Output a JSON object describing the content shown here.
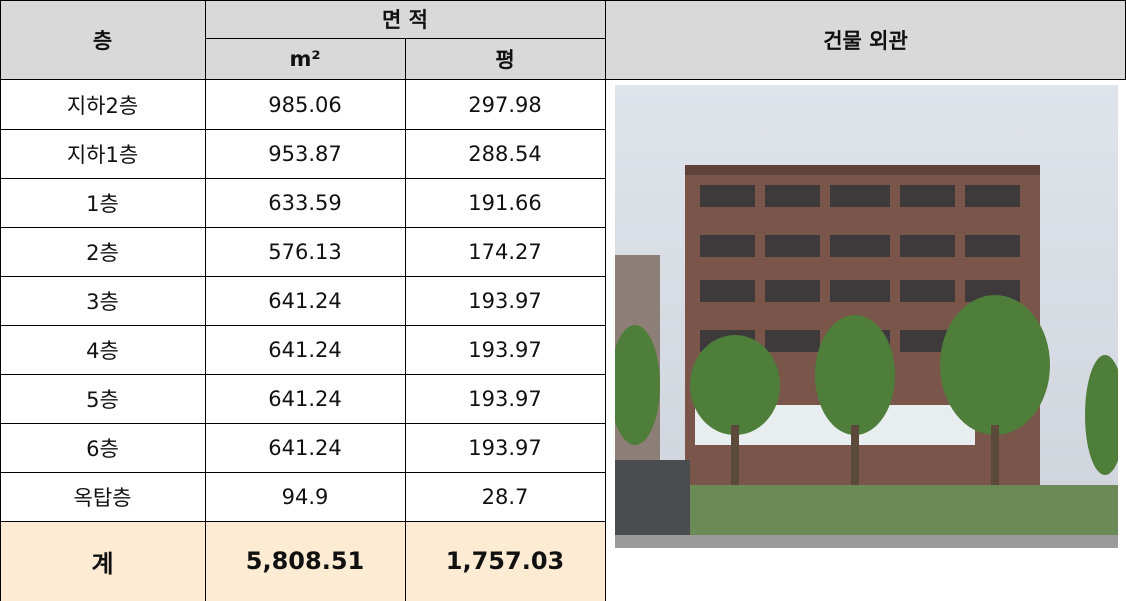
{
  "header": {
    "floor": "층",
    "area": "면 적",
    "sqm": "m²",
    "pyeong": "평",
    "exterior": "건물 외관"
  },
  "rows": [
    [
      "지하2층",
      "985.06",
      "297.98"
    ],
    [
      "지하1층",
      "953.87",
      "288.54"
    ],
    [
      "1층",
      "633.59",
      "191.66"
    ],
    [
      "2층",
      "576.13",
      "174.27"
    ],
    [
      "3층",
      "641.24",
      "193.97"
    ],
    [
      "4층",
      "641.24",
      "193.97"
    ],
    [
      "5층",
      "641.24",
      "193.97"
    ],
    [
      "6층",
      "641.24",
      "193.97"
    ],
    [
      "옥탑층",
      "94.9",
      "28.7"
    ]
  ],
  "total": [
    "계",
    "5,808.51",
    "1,757.03"
  ]
}
